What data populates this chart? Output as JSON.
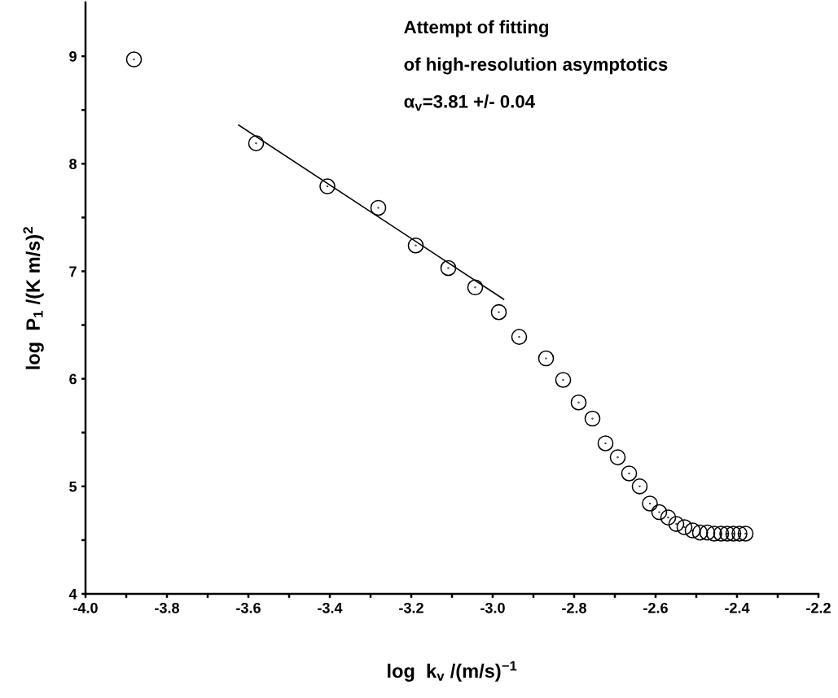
{
  "chart_data": {
    "type": "scatter",
    "xlabel": "log  k$_{v}$ /(m/s)$^{−1}$",
    "ylabel": "log  P$_{1}$ /(K m/s)$^{2}$",
    "annotations": [
      "Attempt of fitting",
      "of high-resolution asymptotics",
      "α$_{v}$=3.81 +/- 0.04"
    ],
    "x": [
      -3.881,
      -3.581,
      -3.406,
      -3.281,
      -3.189,
      -3.109,
      -3.043,
      -2.985,
      -2.935,
      -2.869,
      -2.827,
      -2.789,
      -2.755,
      -2.723,
      -2.693,
      -2.665,
      -2.639,
      -2.614,
      -2.591,
      -2.569,
      -2.549,
      -2.529,
      -2.509,
      -2.491,
      -2.473,
      -2.456,
      -2.439,
      -2.424,
      -2.409,
      -2.394,
      -2.379
    ],
    "series": [
      {
        "color": "#000000",
        "marker": "circle",
        "values": [
          8.97,
          8.19,
          7.79,
          7.59,
          7.24,
          7.03,
          6.85,
          6.62,
          6.39,
          6.19,
          5.99,
          5.78,
          5.63,
          5.4,
          5.27,
          5.12,
          5.0,
          4.84,
          4.76,
          4.71,
          4.65,
          4.62,
          4.59,
          4.57,
          4.57,
          4.56,
          4.56,
          4.56,
          4.56,
          4.56,
          4.56
        ]
      },
      {
        "type": "line",
        "color": "#000000",
        "marker": "none",
        "line_style": "solid",
        "x": [
          -3.624,
          -2.973
        ],
        "values": [
          8.36,
          6.74
        ]
      }
    ],
    "xlim": [
      -4.0,
      -2.2
    ],
    "xticks": [
      {
        "value": -4.0,
        "label": "-4.0"
      },
      {
        "value": -3.9,
        "label": null
      },
      {
        "value": -3.8,
        "label": "-3.8"
      },
      {
        "value": -3.7,
        "label": null
      },
      {
        "value": -3.6,
        "label": "-3.6"
      },
      {
        "value": -3.5,
        "label": null
      },
      {
        "value": -3.4,
        "label": "-3.4"
      },
      {
        "value": -3.3,
        "label": null
      },
      {
        "value": -3.2,
        "label": "-3.2"
      },
      {
        "value": -3.1,
        "label": null
      },
      {
        "value": -3.0,
        "label": "-3.0"
      },
      {
        "value": -2.9,
        "label": null
      },
      {
        "value": -2.8,
        "label": "-2.8"
      },
      {
        "value": -2.7,
        "label": null
      },
      {
        "value": -2.6,
        "label": "-2.6"
      },
      {
        "value": -2.5,
        "label": null
      },
      {
        "value": -2.4,
        "label": "-2.4"
      },
      {
        "value": -2.3,
        "label": null
      },
      {
        "value": -2.2,
        "label": "-2.2"
      }
    ],
    "ylim": [
      4,
      9.5
    ],
    "yticks": [
      4,
      {
        "value": 4.5,
        "label": null
      },
      5,
      {
        "value": 5.5,
        "label": null
      },
      6,
      {
        "value": 6.5,
        "label": null
      },
      7,
      {
        "value": 7.5,
        "label": null
      },
      8,
      {
        "value": 8.5,
        "label": null
      },
      9
    ],
    "grid": false,
    "legend": false
  }
}
